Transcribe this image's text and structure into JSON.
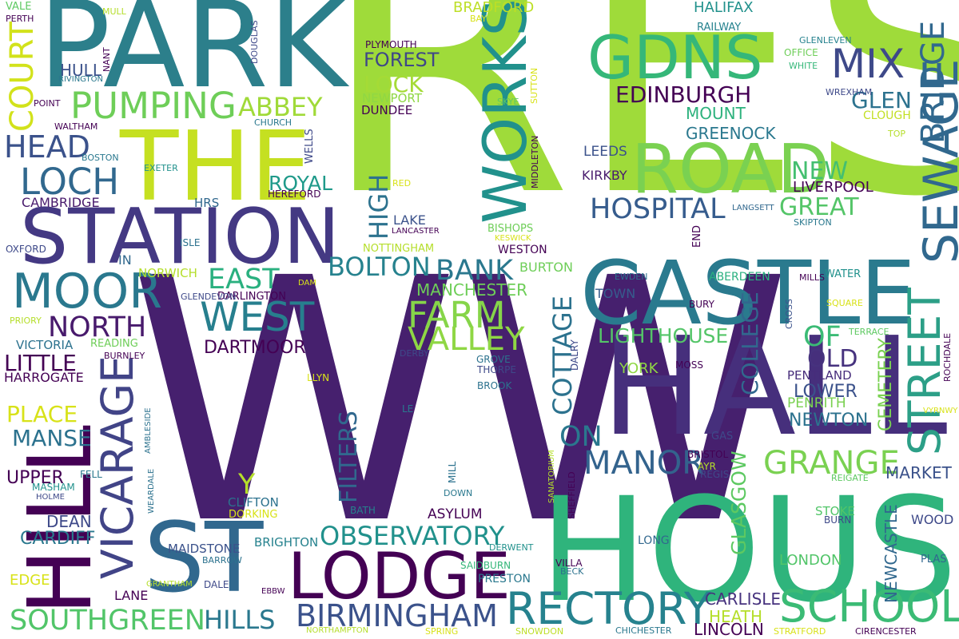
{
  "palette": {
    "dark_purple": "#440154",
    "indigo": "#482878",
    "slate_blue": "#3e4989",
    "steel_blue": "#31688e",
    "teal": "#26828e",
    "blue_green": "#1f9e89",
    "green": "#35b779",
    "light_green": "#6ece58",
    "lime": "#b5de2b",
    "yellow": "#fde725"
  },
  "words": [
    {
      "text": "RES",
      "color": "#9fdb3a"
    },
    {
      "text": "WW",
      "color": "#46206e"
    },
    {
      "text": "PARK",
      "color": "#2c7f8b"
    },
    {
      "text": "HALL",
      "color": "#462f7c"
    },
    {
      "text": "HOUSE",
      "color": "#2fb47c"
    },
    {
      "text": "THE",
      "color": "#c5e021"
    },
    {
      "text": "CASTLE",
      "color": "#2a7a8e"
    },
    {
      "text": "STATION",
      "color": "#443983"
    },
    {
      "text": "ROAD",
      "color": "#7ad151"
    },
    {
      "text": "ST",
      "color": "#31688e"
    },
    {
      "text": "LODGE",
      "color": "#440154"
    },
    {
      "text": "GDNS",
      "color": "#35b779"
    },
    {
      "text": "WORKS",
      "color": "#21918c"
    },
    {
      "text": "HILL",
      "color": "#440154"
    },
    {
      "text": "SEWAGE",
      "color": "#31688e"
    },
    {
      "text": "STREET",
      "color": "#2c9f87"
    },
    {
      "text": "MOOR",
      "color": "#2a788e"
    },
    {
      "text": "VICARAGE",
      "color": "#414487"
    },
    {
      "text": "SCHOOL",
      "color": "#3bbb75"
    },
    {
      "text": "RECTORY",
      "color": "#26828e"
    },
    {
      "text": "MIX",
      "color": "#3e4989"
    },
    {
      "text": "BRIDGE",
      "color": "#31688e"
    },
    {
      "text": "PUMPING",
      "color": "#6ece58"
    },
    {
      "text": "WEST",
      "color": "#277f8e"
    },
    {
      "text": "LOCH",
      "color": "#31688e"
    },
    {
      "text": "COURT",
      "color": "#d2e21b"
    },
    {
      "text": "HEAD",
      "color": "#3b528b"
    },
    {
      "text": "FARM",
      "color": "#86d549"
    },
    {
      "text": "VALLEY",
      "color": "#8fd744"
    },
    {
      "text": "GRANGE",
      "color": "#7ad151"
    },
    {
      "text": "MANOR",
      "color": "#33638d"
    },
    {
      "text": "BIRMINGHAM",
      "color": "#3b528b"
    },
    {
      "text": "SOUTHGREEN",
      "color": "#52c569"
    },
    {
      "text": "OBSERVATORY",
      "color": "#21918c"
    },
    {
      "text": "HOSPITAL",
      "color": "#365c8d"
    },
    {
      "text": "ABBEY",
      "color": "#a0da39"
    },
    {
      "text": "EDINBURGH",
      "color": "#440154"
    },
    {
      "text": "GLEN",
      "color": "#2c728e"
    },
    {
      "text": "NORTH",
      "color": "#481a6c"
    },
    {
      "text": "EAST",
      "color": "#2ab07f"
    },
    {
      "text": "BOLTON",
      "color": "#26828e"
    },
    {
      "text": "BANK",
      "color": "#2a788e"
    },
    {
      "text": "HIGH",
      "color": "#2c728e"
    },
    {
      "text": "LOCK",
      "color": "#a5db36"
    },
    {
      "text": "FOREST",
      "color": "#3f4788"
    },
    {
      "text": "NEW",
      "color": "#44bf70"
    },
    {
      "text": "GREAT",
      "color": "#54c568"
    },
    {
      "text": "ROYAL",
      "color": "#1f9a8a"
    },
    {
      "text": "OF",
      "color": "#3bbb75"
    },
    {
      "text": "OLD",
      "color": "#46327e"
    },
    {
      "text": "ON",
      "color": "#2a788e"
    },
    {
      "text": "COTTAGE",
      "color": "#2c728e"
    },
    {
      "text": "COLLEGE",
      "color": "#31688e"
    },
    {
      "text": "FILTERS",
      "color": "#31688e"
    },
    {
      "text": "MOUNT",
      "color": "#2db27d"
    },
    {
      "text": "GREENOCK",
      "color": "#2a788e"
    },
    {
      "text": "LIGHTHOUSE",
      "color": "#54c568"
    },
    {
      "text": "GLASGOW",
      "color": "#5ec962"
    },
    {
      "text": "PLACE",
      "color": "#d8e219"
    },
    {
      "text": "LITTLE",
      "color": "#440154"
    },
    {
      "text": "MANSE",
      "color": "#2c728e"
    },
    {
      "text": "DARTMOOR",
      "color": "#440154"
    },
    {
      "text": "HILLS",
      "color": "#2a788e"
    },
    {
      "text": "CEMETERY",
      "color": "#7ad151"
    },
    {
      "text": "LOWER",
      "color": "#3b528b"
    },
    {
      "text": "NEWTON",
      "color": "#2c728e"
    },
    {
      "text": "LIVERPOOL",
      "color": "#440154"
    },
    {
      "text": "MANCHESTER",
      "color": "#6ece58"
    },
    {
      "text": "NEWCASTLE",
      "color": "#31688e"
    },
    {
      "text": "MARKET",
      "color": "#3b528b"
    },
    {
      "text": "CARDIFF",
      "color": "#2a788e"
    },
    {
      "text": "UPPER",
      "color": "#440154"
    },
    {
      "text": "DEAN",
      "color": "#3e4989"
    },
    {
      "text": "HULL",
      "color": "#3b528b"
    },
    {
      "text": "Y",
      "color": "#b5de2b"
    },
    {
      "text": "HEATH",
      "color": "#b5de2b"
    },
    {
      "text": "CARLISLE",
      "color": "#46327e"
    },
    {
      "text": "LINCOLN",
      "color": "#440154"
    },
    {
      "text": "LONDON",
      "color": "#52c569"
    },
    {
      "text": "TOWN",
      "color": "#365c8d"
    },
    {
      "text": "YORK",
      "color": "#8fd744"
    },
    {
      "text": "EDGE",
      "color": "#d8e219"
    },
    {
      "text": "LANE",
      "color": "#440154"
    },
    {
      "text": "WOOD",
      "color": "#3e4989"
    },
    {
      "text": "PENTLAND",
      "color": "#472d7b"
    },
    {
      "text": "PENRITH",
      "color": "#7ad151"
    },
    {
      "text": "LEEDS",
      "color": "#3b528b"
    },
    {
      "text": "KIRKBY",
      "color": "#481b6d"
    },
    {
      "text": "CLIFTON",
      "color": "#2c728e"
    },
    {
      "text": "BRIGHTON",
      "color": "#26828e"
    },
    {
      "text": "MAIDSTONE",
      "color": "#3b528b"
    },
    {
      "text": "HARROGATE",
      "color": "#440154"
    },
    {
      "text": "VICTORIA",
      "color": "#2c728e"
    },
    {
      "text": "CAMBRIDGE",
      "color": "#481a6c"
    },
    {
      "text": "NORWICH",
      "color": "#b5de2b"
    },
    {
      "text": "DARLINGTON",
      "color": "#440154"
    },
    {
      "text": "ASYLUM",
      "color": "#440154"
    },
    {
      "text": "LAKE",
      "color": "#3b528b"
    },
    {
      "text": "BURTON",
      "color": "#6ece58"
    },
    {
      "text": "WESTON",
      "color": "#440154"
    },
    {
      "text": "PRESTON",
      "color": "#2a788e"
    },
    {
      "text": "STOKE",
      "color": "#52c569"
    },
    {
      "text": "ABERDEEN",
      "color": "#2ab07f"
    },
    {
      "text": "HALIFAX",
      "color": "#21918c"
    },
    {
      "text": "BRADFORD",
      "color": "#bddf26"
    },
    {
      "text": "PLYMOUTH",
      "color": "#440154"
    },
    {
      "text": "NEWPORT",
      "color": "#8fd744"
    },
    {
      "text": "DUNDEE",
      "color": "#440154"
    },
    {
      "text": "RAILWAY",
      "color": "#26828e"
    },
    {
      "text": "CLOUGH",
      "color": "#c2df23"
    },
    {
      "text": "WREXHAM",
      "color": "#3e4989"
    },
    {
      "text": "GLENLEVEN",
      "color": "#26828e"
    },
    {
      "text": "OFFICE",
      "color": "#6ece58"
    },
    {
      "text": "WHITE",
      "color": "#35b779"
    },
    {
      "text": "SKIPTON",
      "color": "#2a788e"
    },
    {
      "text": "LANGSETT",
      "color": "#31688e"
    },
    {
      "text": "WATER",
      "color": "#21918c"
    },
    {
      "text": "MILLS",
      "color": "#440154"
    },
    {
      "text": "SQUARE",
      "color": "#d8e219"
    },
    {
      "text": "TERRACE",
      "color": "#5ec962"
    },
    {
      "text": "BURY",
      "color": "#440154"
    },
    {
      "text": "CROSS",
      "color": "#3b528b"
    },
    {
      "text": "EWDEN",
      "color": "#2c728e"
    },
    {
      "text": "MOSS",
      "color": "#440154"
    },
    {
      "text": "ROCHDALE",
      "color": "#440154"
    },
    {
      "text": "VYRNWY",
      "color": "#d8e219"
    },
    {
      "text": "GAS",
      "color": "#3e4989"
    },
    {
      "text": "BRISTOL",
      "color": "#440154"
    },
    {
      "text": "AYR",
      "color": "#b5de2b"
    },
    {
      "text": "REGIS",
      "color": "#3e4989"
    },
    {
      "text": "REIGATE",
      "color": "#5ec962"
    },
    {
      "text": "BURN",
      "color": "#3e4989"
    },
    {
      "text": "PLAS",
      "color": "#31688e"
    },
    {
      "text": "STRATFORD",
      "color": "#d8e219"
    },
    {
      "text": "CHICHESTER",
      "color": "#2a788e"
    },
    {
      "text": "CIRENCESTER",
      "color": "#440154"
    },
    {
      "text": "LONG",
      "color": "#31688e"
    },
    {
      "text": "VILLA",
      "color": "#440154"
    },
    {
      "text": "BECK",
      "color": "#2c728e"
    },
    {
      "text": "DERWENT",
      "color": "#21918c"
    },
    {
      "text": "SAIDBURN",
      "color": "#35b779"
    },
    {
      "text": "SHEFFIELD",
      "color": "#440154"
    },
    {
      "text": "SANATORIUM",
      "color": "#b5de2b"
    },
    {
      "text": "MILL",
      "color": "#2c728e"
    },
    {
      "text": "DOWN",
      "color": "#2a788e"
    },
    {
      "text": "BATH",
      "color": "#26828e"
    },
    {
      "text": "SNOWDON",
      "color": "#bddf26"
    },
    {
      "text": "SPRING",
      "color": "#d8e219"
    },
    {
      "text": "NORTHAMPTON",
      "color": "#b5de2b"
    },
    {
      "text": "EBBW",
      "color": "#440154"
    },
    {
      "text": "BARROW",
      "color": "#2c728e"
    },
    {
      "text": "DALE",
      "color": "#3e4989"
    },
    {
      "text": "GRANTHAM",
      "color": "#b5de2b"
    },
    {
      "text": "DORKING",
      "color": "#d8e219"
    },
    {
      "text": "HOLME",
      "color": "#3e4989"
    },
    {
      "text": "MASHAM",
      "color": "#21918c"
    },
    {
      "text": "FELL",
      "color": "#2a788e"
    },
    {
      "text": "WEARDALE",
      "color": "#2c728e"
    },
    {
      "text": "AMBLESIDE",
      "color": "#2c728e"
    },
    {
      "text": "LLYN",
      "color": "#d8e219"
    },
    {
      "text": "LE",
      "color": "#2a788e"
    },
    {
      "text": "GROVE",
      "color": "#2c728e"
    },
    {
      "text": "THORPE",
      "color": "#3e4989"
    },
    {
      "text": "BROOK",
      "color": "#2c728e"
    },
    {
      "text": "DERBY",
      "color": "#3e4989"
    },
    {
      "text": "DALRY",
      "color": "#3e4989"
    },
    {
      "text": "DAM",
      "color": "#d8e219"
    },
    {
      "text": "GLENDEVON",
      "color": "#3e4989"
    },
    {
      "text": "BURNLEY",
      "color": "#440154"
    },
    {
      "text": "READING",
      "color": "#6ece58"
    },
    {
      "text": "PRIORY",
      "color": "#b5de2b"
    },
    {
      "text": "OXFORD",
      "color": "#3e4989"
    },
    {
      "text": "ISLE",
      "color": "#2c728e"
    },
    {
      "text": "IN",
      "color": "#31688e"
    },
    {
      "text": "HRS",
      "color": "#31688e"
    },
    {
      "text": "HEREFORD",
      "color": "#440154"
    },
    {
      "text": "BOSTON",
      "color": "#2a788e"
    },
    {
      "text": "EXETER",
      "color": "#21918c"
    },
    {
      "text": "WELLS",
      "color": "#3e4989"
    },
    {
      "text": "CHURCH",
      "color": "#2a788e"
    },
    {
      "text": "WALTHAM",
      "color": "#440154"
    },
    {
      "text": "POINT",
      "color": "#440154"
    },
    {
      "text": "RIVINGTON",
      "color": "#2a788e"
    },
    {
      "text": "NANT",
      "color": "#440154"
    },
    {
      "text": "MULL",
      "color": "#b5de2b"
    },
    {
      "text": "VALE",
      "color": "#5ec962"
    },
    {
      "text": "PERTH",
      "color": "#440154"
    },
    {
      "text": "DOUGLAS",
      "color": "#3e4989"
    },
    {
      "text": "BAY",
      "color": "#d8e219"
    },
    {
      "text": "SKYE",
      "color": "#5ec962"
    },
    {
      "text": "SUTTON",
      "color": "#d8e219"
    },
    {
      "text": "MIDDLETON",
      "color": "#440154"
    },
    {
      "text": "RED",
      "color": "#d8e219"
    },
    {
      "text": "LANCASTER",
      "color": "#440154"
    },
    {
      "text": "NOTTINGHAM",
      "color": "#b5de2b"
    },
    {
      "text": "BISHOPS",
      "color": "#6ece58"
    },
    {
      "text": "KESWICK",
      "color": "#d8e219"
    },
    {
      "text": "END",
      "color": "#440154"
    },
    {
      "text": "TOP",
      "color": "#b5de2b"
    }
  ]
}
